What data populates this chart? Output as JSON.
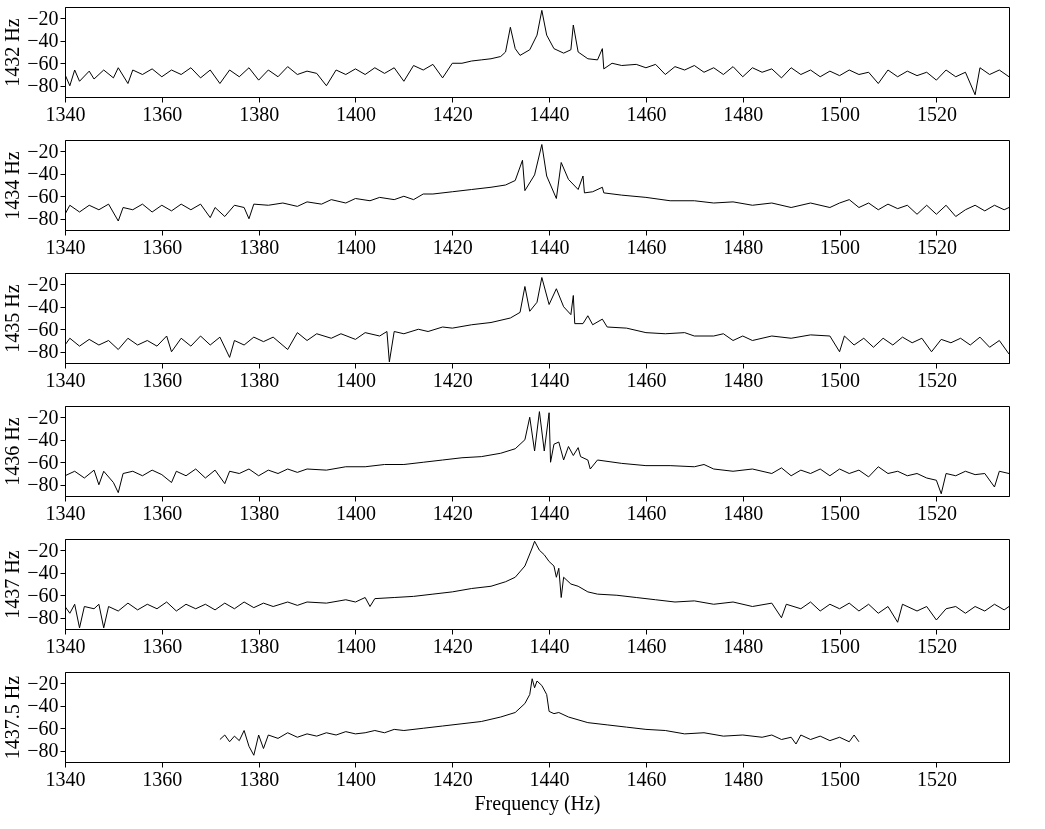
{
  "chart_data": [
    {
      "type": "line",
      "ylabel": "1432 Hz",
      "xlim": [
        1340,
        1535
      ],
      "ylim": [
        -90,
        -10
      ],
      "xticks": [
        1340,
        1360,
        1380,
        1400,
        1420,
        1440,
        1460,
        1480,
        1500,
        1520
      ],
      "yticks": [
        -80,
        -60,
        -40,
        -20
      ],
      "grid": false,
      "x": [
        1340,
        1341,
        1342,
        1343,
        1345,
        1346,
        1348,
        1350,
        1351,
        1353,
        1354,
        1356,
        1358,
        1360,
        1362,
        1364,
        1366,
        1368,
        1370,
        1372,
        1374,
        1376,
        1378,
        1380,
        1382,
        1384,
        1386,
        1388,
        1390,
        1392,
        1394,
        1396,
        1398,
        1400,
        1402,
        1404,
        1406,
        1408,
        1410,
        1412,
        1414,
        1416,
        1418,
        1420,
        1422,
        1424,
        1426,
        1428,
        1430,
        1431,
        1432,
        1433,
        1434,
        1436,
        1437.5,
        1438.5,
        1439.5,
        1441,
        1443,
        1444.5,
        1445,
        1446,
        1448,
        1450,
        1451,
        1451.3,
        1453,
        1455,
        1458,
        1460,
        1462,
        1464,
        1466,
        1468,
        1470,
        1472,
        1474,
        1476,
        1478,
        1480,
        1482,
        1484,
        1486,
        1488,
        1490,
        1492,
        1494,
        1496,
        1498,
        1500,
        1502,
        1504,
        1506,
        1508,
        1510,
        1512,
        1514,
        1516,
        1518,
        1520,
        1522,
        1524,
        1526,
        1528,
        1529,
        1531,
        1533,
        1535
      ],
      "series": [
        {
          "color": "#000000",
          "values": [
            -70,
            -80,
            -66,
            -76,
            -67,
            -74,
            -66,
            -73,
            -64,
            -78,
            -66,
            -70,
            -65,
            -72,
            -66,
            -70,
            -64,
            -73,
            -66,
            -78,
            -66,
            -72,
            -64,
            -75,
            -66,
            -72,
            -63,
            -70,
            -67,
            -69,
            -80,
            -66,
            -70,
            -65,
            -70,
            -64,
            -69,
            -64,
            -76,
            -62,
            -66,
            -61,
            -73,
            -60,
            -60,
            -58,
            -57,
            -56,
            -54,
            -50,
            -28,
            -47,
            -53,
            -48,
            -35,
            -13,
            -35,
            -47,
            -51,
            -48,
            -26,
            -50,
            -56,
            -57,
            -47,
            -65,
            -60,
            -62,
            -61,
            -64,
            -61,
            -70,
            -63,
            -66,
            -62,
            -68,
            -64,
            -70,
            -63,
            -72,
            -64,
            -68,
            -65,
            -73,
            -64,
            -70,
            -66,
            -72,
            -67,
            -71,
            -66,
            -70,
            -68,
            -78,
            -66,
            -72,
            -67,
            -71,
            -68,
            -75,
            -66,
            -72,
            -68,
            -88,
            -64,
            -70,
            -66,
            -72
          ]
        }
      ]
    },
    {
      "type": "line",
      "ylabel": "1434 Hz",
      "xlim": [
        1340,
        1535
      ],
      "ylim": [
        -90,
        -10
      ],
      "xticks": [
        1340,
        1360,
        1380,
        1400,
        1420,
        1440,
        1460,
        1480,
        1500,
        1520
      ],
      "yticks": [
        -80,
        -60,
        -40,
        -20
      ],
      "grid": false,
      "x": [
        1340,
        1341,
        1343,
        1345,
        1347,
        1349,
        1351,
        1352,
        1354,
        1356,
        1358,
        1360,
        1362,
        1364,
        1366,
        1368,
        1370,
        1371,
        1373,
        1375,
        1377,
        1378,
        1379,
        1382,
        1385,
        1388,
        1390,
        1393,
        1395,
        1398,
        1400,
        1403,
        1405,
        1408,
        1410,
        1412,
        1414,
        1416,
        1420,
        1424,
        1428,
        1431,
        1433,
        1434.5,
        1435,
        1437,
        1438.5,
        1439.5,
        1441.5,
        1442.5,
        1444,
        1446,
        1447,
        1447.3,
        1449,
        1451,
        1451.3,
        1455,
        1460,
        1465,
        1470,
        1474,
        1478,
        1482,
        1486,
        1490,
        1494,
        1498,
        1500,
        1502,
        1504,
        1506,
        1508,
        1510,
        1512,
        1514,
        1516,
        1518,
        1520,
        1522,
        1524,
        1526,
        1528,
        1530,
        1532,
        1534,
        1535
      ],
      "series": [
        {
          "color": "#000000",
          "values": [
            -76,
            -68,
            -74,
            -68,
            -72,
            -67,
            -82,
            -70,
            -72,
            -67,
            -74,
            -68,
            -73,
            -67,
            -72,
            -67,
            -79,
            -70,
            -78,
            -68,
            -70,
            -80,
            -67,
            -68,
            -66,
            -69,
            -65,
            -67,
            -63,
            -66,
            -62,
            -64,
            -61,
            -63,
            -60,
            -63,
            -58,
            -58,
            -56,
            -54,
            -52,
            -50,
            -46,
            -28,
            -55,
            -41,
            -14,
            -42,
            -62,
            -30,
            -45,
            -54,
            -42,
            -57,
            -56,
            -52,
            -57,
            -59,
            -61,
            -64,
            -64,
            -66,
            -65,
            -68,
            -66,
            -70,
            -66,
            -70,
            -66,
            -63,
            -70,
            -66,
            -72,
            -67,
            -71,
            -68,
            -76,
            -68,
            -76,
            -68,
            -78,
            -72,
            -68,
            -73,
            -68,
            -72,
            -70
          ]
        }
      ]
    },
    {
      "type": "line",
      "ylabel": "1435 Hz",
      "xlim": [
        1340,
        1535
      ],
      "ylim": [
        -90,
        -10
      ],
      "xticks": [
        1340,
        1360,
        1380,
        1400,
        1420,
        1440,
        1460,
        1480,
        1500,
        1520
      ],
      "yticks": [
        -80,
        -60,
        -40,
        -20
      ],
      "grid": false,
      "x": [
        1340,
        1341,
        1343,
        1345,
        1347,
        1349,
        1351,
        1353,
        1355,
        1357,
        1359,
        1361,
        1362,
        1364,
        1366,
        1368,
        1370,
        1372,
        1374,
        1375,
        1377,
        1379,
        1381,
        1383,
        1386,
        1388,
        1390,
        1392,
        1395,
        1397,
        1400,
        1402,
        1405,
        1406.5,
        1407,
        1408,
        1410,
        1413,
        1415,
        1418,
        1420,
        1424,
        1428,
        1432,
        1434,
        1435,
        1436,
        1437.5,
        1438.5,
        1440,
        1441.5,
        1443,
        1444.5,
        1445,
        1445.3,
        1447,
        1448,
        1449,
        1451,
        1452,
        1456,
        1460,
        1464,
        1468,
        1470,
        1474,
        1476,
        1478,
        1480,
        1482,
        1486,
        1490,
        1494,
        1498,
        1500,
        1501,
        1503,
        1505,
        1507,
        1509,
        1511,
        1513,
        1515,
        1517,
        1519,
        1521,
        1523,
        1525,
        1527,
        1529,
        1531,
        1533,
        1535
      ],
      "series": [
        {
          "color": "#000000",
          "values": [
            -74,
            -68,
            -75,
            -69,
            -74,
            -70,
            -78,
            -68,
            -74,
            -70,
            -75,
            -66,
            -80,
            -68,
            -75,
            -66,
            -74,
            -67,
            -85,
            -70,
            -74,
            -67,
            -71,
            -67,
            -78,
            -63,
            -70,
            -64,
            -68,
            -64,
            -69,
            -63,
            -66,
            -62,
            -89,
            -62,
            -64,
            -60,
            -62,
            -58,
            -59,
            -56,
            -54,
            -50,
            -45,
            -22,
            -44,
            -36,
            -14,
            -38,
            -24,
            -40,
            -47,
            -30,
            -55,
            -55,
            -48,
            -56,
            -51,
            -58,
            -59,
            -63,
            -64,
            -63,
            -66,
            -66,
            -64,
            -70,
            -66,
            -70,
            -66,
            -68,
            -65,
            -66,
            -80,
            -66,
            -74,
            -68,
            -76,
            -68,
            -74,
            -67,
            -72,
            -68,
            -80,
            -69,
            -72,
            -68,
            -74,
            -67,
            -76,
            -70,
            -82
          ]
        }
      ]
    },
    {
      "type": "line",
      "ylabel": "1436 Hz",
      "xlim": [
        1340,
        1535
      ],
      "ylim": [
        -90,
        -10
      ],
      "xticks": [
        1340,
        1360,
        1380,
        1400,
        1420,
        1440,
        1460,
        1480,
        1500,
        1520
      ],
      "yticks": [
        -80,
        -60,
        -40,
        -20
      ],
      "grid": false,
      "x": [
        1340,
        1342,
        1344,
        1346,
        1347,
        1348,
        1350,
        1351,
        1352,
        1354,
        1356,
        1358,
        1360,
        1362,
        1363,
        1365,
        1367,
        1369,
        1371,
        1373,
        1374,
        1376,
        1378,
        1380,
        1382,
        1384,
        1386,
        1388,
        1390,
        1394,
        1398,
        1402,
        1406,
        1410,
        1414,
        1418,
        1422,
        1426,
        1430,
        1433,
        1435,
        1436,
        1437,
        1438,
        1439,
        1440,
        1440.3,
        1441,
        1442,
        1443,
        1444,
        1445,
        1446,
        1446.5,
        1448,
        1448.5,
        1450,
        1455,
        1460,
        1465,
        1470,
        1472,
        1474,
        1478,
        1482,
        1486,
        1488,
        1490,
        1492,
        1494,
        1496,
        1498,
        1500,
        1502,
        1504,
        1506,
        1508,
        1510,
        1512,
        1514,
        1516,
        1518,
        1520,
        1521,
        1522,
        1524,
        1526,
        1528,
        1530,
        1532,
        1533,
        1535
      ],
      "series": [
        {
          "color": "#000000",
          "values": [
            -72,
            -68,
            -74,
            -67,
            -80,
            -68,
            -78,
            -87,
            -70,
            -68,
            -72,
            -67,
            -71,
            -78,
            -68,
            -72,
            -66,
            -74,
            -67,
            -79,
            -68,
            -70,
            -66,
            -72,
            -67,
            -70,
            -66,
            -69,
            -66,
            -67,
            -64,
            -64,
            -62,
            -62,
            -60,
            -58,
            -56,
            -55,
            -52,
            -48,
            -40,
            -20,
            -50,
            -15,
            -50,
            -16,
            -60,
            -44,
            -42,
            -58,
            -46,
            -54,
            -47,
            -55,
            -58,
            -66,
            -58,
            -61,
            -63,
            -63,
            -64,
            -62,
            -66,
            -68,
            -66,
            -70,
            -65,
            -72,
            -67,
            -70,
            -66,
            -72,
            -66,
            -70,
            -67,
            -73,
            -64,
            -70,
            -68,
            -72,
            -70,
            -74,
            -76,
            -88,
            -70,
            -72,
            -68,
            -71,
            -70,
            -82,
            -68,
            -70
          ]
        }
      ]
    },
    {
      "type": "line",
      "ylabel": "1437 Hz",
      "xlim": [
        1340,
        1535
      ],
      "ylim": [
        -90,
        -10
      ],
      "xticks": [
        1340,
        1360,
        1380,
        1400,
        1420,
        1440,
        1460,
        1480,
        1500,
        1520
      ],
      "yticks": [
        -80,
        -60,
        -40,
        -20
      ],
      "grid": false,
      "x": [
        1340,
        1341,
        1342,
        1343,
        1344,
        1346,
        1347,
        1348,
        1349,
        1351,
        1353,
        1355,
        1357,
        1359,
        1361,
        1363,
        1365,
        1367,
        1369,
        1371,
        1373,
        1375,
        1377,
        1379,
        1381,
        1383,
        1386,
        1388,
        1390,
        1394,
        1398,
        1400,
        1402,
        1403,
        1404,
        1408,
        1412,
        1416,
        1420,
        1424,
        1428,
        1431,
        1433,
        1435,
        1436.5,
        1437,
        1438,
        1439,
        1440,
        1441,
        1441.5,
        1442,
        1442.5,
        1443,
        1444.5,
        1446,
        1448,
        1450,
        1454,
        1458,
        1462,
        1466,
        1470,
        1474,
        1478,
        1482,
        1486,
        1488,
        1489,
        1492,
        1494,
        1496,
        1498,
        1500,
        1502,
        1504,
        1506,
        1508,
        1510,
        1512,
        1513,
        1516,
        1518,
        1520,
        1522,
        1524,
        1526,
        1528,
        1530,
        1532,
        1534,
        1535
      ],
      "series": [
        {
          "color": "#000000",
          "values": [
            -70,
            -76,
            -68,
            -89,
            -70,
            -72,
            -68,
            -89,
            -70,
            -74,
            -67,
            -73,
            -68,
            -72,
            -66,
            -74,
            -68,
            -72,
            -68,
            -73,
            -67,
            -72,
            -66,
            -71,
            -67,
            -70,
            -66,
            -69,
            -66,
            -67,
            -64,
            -66,
            -62,
            -70,
            -63,
            -62,
            -61,
            -59,
            -57,
            -54,
            -52,
            -48,
            -44,
            -34,
            -18,
            -12,
            -20,
            -24,
            -30,
            -34,
            -44,
            -36,
            -62,
            -44,
            -50,
            -52,
            -57,
            -59,
            -60,
            -62,
            -64,
            -66,
            -65,
            -68,
            -66,
            -70,
            -67,
            -80,
            -68,
            -72,
            -66,
            -74,
            -68,
            -72,
            -67,
            -74,
            -68,
            -76,
            -70,
            -84,
            -68,
            -74,
            -70,
            -82,
            -72,
            -70,
            -76,
            -70,
            -74,
            -68,
            -73,
            -70
          ]
        }
      ]
    },
    {
      "type": "line",
      "ylabel": "1437.5 Hz",
      "xlabel": "Frequency (Hz)",
      "xlim": [
        1340,
        1535
      ],
      "ylim": [
        -90,
        -10
      ],
      "xticks": [
        1340,
        1360,
        1380,
        1400,
        1420,
        1440,
        1460,
        1480,
        1500,
        1520
      ],
      "yticks": [
        -80,
        -60,
        -40,
        -20
      ],
      "grid": false,
      "x": [
        1372,
        1373,
        1374,
        1375,
        1376,
        1377,
        1378,
        1379,
        1380,
        1381,
        1382,
        1384,
        1386,
        1388,
        1390,
        1392,
        1394,
        1396,
        1398,
        1400,
        1402,
        1404,
        1406,
        1408,
        1410,
        1414,
        1418,
        1422,
        1426,
        1430,
        1433,
        1435,
        1436,
        1436.5,
        1437,
        1437.5,
        1438.5,
        1439.5,
        1440,
        1441,
        1442,
        1444,
        1448,
        1452,
        1456,
        1460,
        1464,
        1468,
        1472,
        1476,
        1480,
        1484,
        1486,
        1488,
        1490,
        1491,
        1492,
        1494,
        1496,
        1498,
        1500,
        1502,
        1503,
        1504
      ],
      "series": [
        {
          "color": "#000000",
          "values": [
            -70,
            -66,
            -72,
            -67,
            -71,
            -62,
            -76,
            -84,
            -66,
            -78,
            -66,
            -69,
            -64,
            -68,
            -65,
            -67,
            -64,
            -66,
            -63,
            -65,
            -64,
            -62,
            -64,
            -61,
            -62,
            -60,
            -58,
            -56,
            -54,
            -50,
            -46,
            -38,
            -30,
            -16,
            -24,
            -18,
            -22,
            -30,
            -45,
            -47,
            -46,
            -50,
            -55,
            -57,
            -59,
            -61,
            -62,
            -65,
            -64,
            -67,
            -66,
            -68,
            -66,
            -70,
            -68,
            -74,
            -66,
            -70,
            -67,
            -71,
            -68,
            -72,
            -66,
            -72
          ]
        }
      ]
    }
  ]
}
